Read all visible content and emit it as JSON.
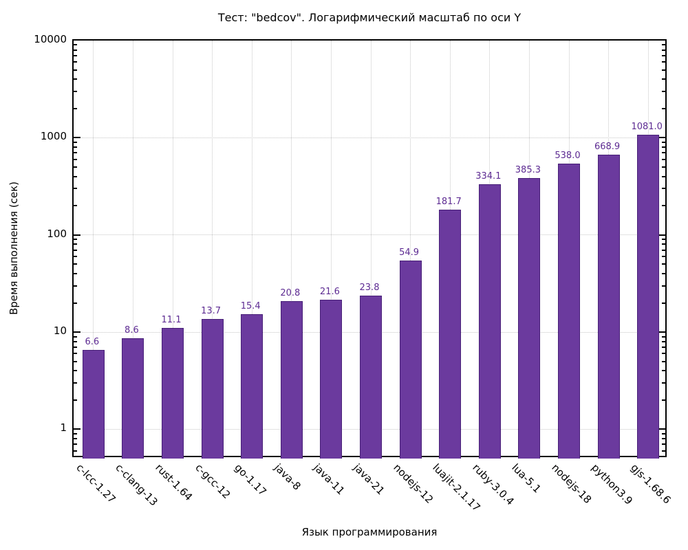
{
  "chart_data": {
    "type": "bar",
    "title": "Тест: \"bedcov\". Логарифмический масштаб по оси Y",
    "xlabel": "Язык программирования",
    "ylabel": "Время выполнения (сек)",
    "series_name": "bedcov",
    "legend_position": "top-left-inside",
    "y_scale": "log10",
    "ylim": [
      0.5,
      10000
    ],
    "y_major_ticks": [
      1,
      10,
      100,
      1000,
      10000
    ],
    "y_tick_labels": [
      "1",
      "10",
      "100",
      "1000",
      "10000"
    ],
    "grid": true,
    "categories": [
      "c-lcc-1.27",
      "c-clang-13",
      "rust-1.64",
      "c-gcc-12",
      "go-1.17",
      "java-8",
      "java-11",
      "java-21",
      "nodejs-12",
      "luajit-2.1.17",
      "ruby-3.0.4",
      "lua-5.1",
      "nodejs-18",
      "python3.9",
      "gjs-1.68.6"
    ],
    "values": [
      6.6,
      8.6,
      11.1,
      13.7,
      15.4,
      20.8,
      21.6,
      23.8,
      54.9,
      181.7,
      334.1,
      385.3,
      538.0,
      668.9,
      1081.0
    ],
    "value_label_decimals": 1,
    "colors": {
      "bar_fill": "#6b3a9e",
      "bar_border": "#471f77",
      "value_label": "#5d2b92",
      "grid": "#c6c6c6",
      "axis": "#000000",
      "background": "#ffffff"
    }
  }
}
